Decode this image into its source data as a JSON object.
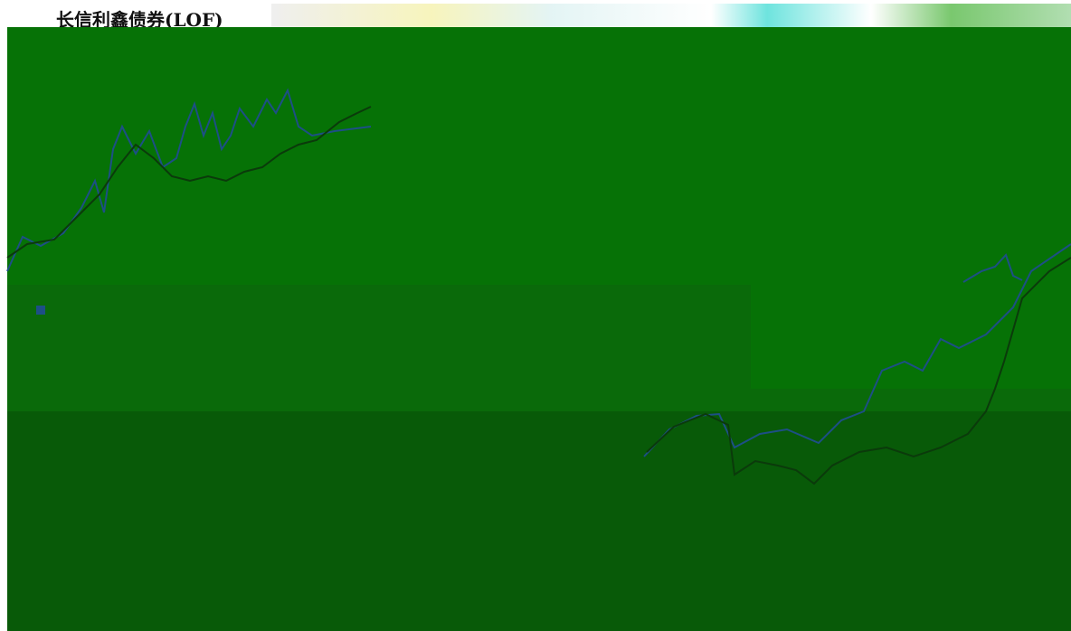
{
  "header": {
    "title": "长信利鑫债券(LOF)"
  }
}
